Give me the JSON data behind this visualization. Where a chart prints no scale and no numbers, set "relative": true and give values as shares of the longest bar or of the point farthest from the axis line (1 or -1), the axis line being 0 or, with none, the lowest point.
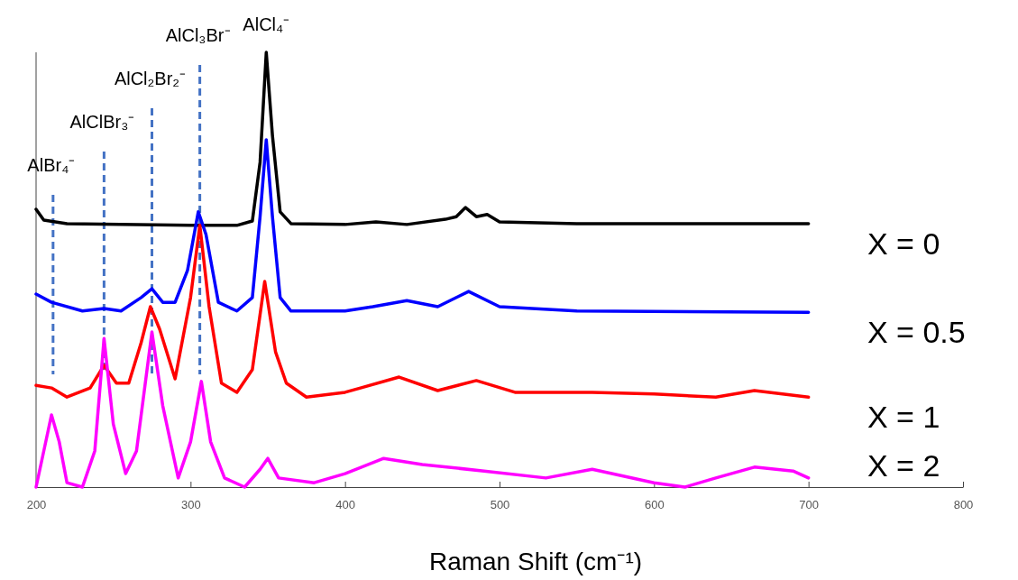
{
  "chart_data": {
    "type": "line",
    "relative": true,
    "xlabel": "Raman Shift (cm⁻¹)",
    "xlim": [
      200,
      800
    ],
    "xticks": [
      200,
      300,
      400,
      500,
      600,
      700,
      800
    ],
    "grid": false,
    "marker": "none",
    "line_style": "solid",
    "series": [
      {
        "name": "X = 0",
        "color": "#000000",
        "x": [
          200,
          205,
          220,
          300,
          330,
          340,
          345,
          349,
          353,
          358,
          365,
          400,
          420,
          440,
          465,
          472,
          478,
          485,
          492,
          500,
          550,
          700
        ],
        "values": [
          0.639,
          0.614,
          0.606,
          0.602,
          0.602,
          0.612,
          0.747,
          1.0,
          0.809,
          0.633,
          0.606,
          0.604,
          0.61,
          0.604,
          0.616,
          0.622,
          0.643,
          0.622,
          0.627,
          0.61,
          0.606,
          0.606
        ]
      },
      {
        "name": "X = 0.5",
        "color": "#0000ff",
        "x": [
          200,
          210,
          230,
          244,
          255,
          268,
          275,
          282,
          290,
          298,
          305,
          310,
          318,
          330,
          340,
          345,
          349,
          353,
          358,
          365,
          400,
          418,
          440,
          460,
          480,
          500,
          550,
          700
        ],
        "values": [
          0.444,
          0.425,
          0.405,
          0.411,
          0.405,
          0.436,
          0.456,
          0.425,
          0.425,
          0.498,
          0.633,
          0.581,
          0.425,
          0.405,
          0.436,
          0.622,
          0.799,
          0.622,
          0.436,
          0.405,
          0.405,
          0.415,
          0.429,
          0.415,
          0.45,
          0.415,
          0.405,
          0.402
        ]
      },
      {
        "name": "X = 1",
        "color": "#ff0000",
        "x": [
          200,
          210,
          220,
          235,
          244,
          252,
          260,
          268,
          274,
          280,
          290,
          300,
          306,
          312,
          320,
          330,
          340,
          348,
          355,
          362,
          375,
          400,
          410,
          435,
          460,
          485,
          510,
          560,
          600,
          640,
          665,
          700
        ],
        "values": [
          0.234,
          0.228,
          0.207,
          0.228,
          0.28,
          0.239,
          0.239,
          0.332,
          0.415,
          0.363,
          0.249,
          0.436,
          0.602,
          0.415,
          0.239,
          0.218,
          0.27,
          0.473,
          0.311,
          0.239,
          0.207,
          0.218,
          0.228,
          0.253,
          0.222,
          0.245,
          0.218,
          0.218,
          0.214,
          0.207,
          0.222,
          0.207
        ]
      },
      {
        "name": "X = 2",
        "color": "#ff00ff",
        "x": [
          200,
          205,
          210,
          215,
          220,
          230,
          238,
          244,
          250,
          258,
          265,
          275,
          282,
          292,
          300,
          307,
          313,
          322,
          335,
          345,
          350,
          357,
          380,
          400,
          425,
          450,
          490,
          530,
          560,
          600,
          620,
          640,
          665,
          690,
          700
        ],
        "values": [
          0.0,
          0.083,
          0.166,
          0.104,
          0.01,
          0.0,
          0.083,
          0.342,
          0.145,
          0.031,
          0.083,
          0.357,
          0.187,
          0.021,
          0.104,
          0.243,
          0.104,
          0.021,
          0.0,
          0.041,
          0.066,
          0.021,
          0.01,
          0.031,
          0.066,
          0.052,
          0.037,
          0.021,
          0.041,
          0.01,
          0.0,
          0.021,
          0.046,
          0.037,
          0.021
        ]
      }
    ],
    "ref_lines": [
      {
        "axis": "x",
        "value": 211,
        "label": "AlBr₄⁻",
        "color": "#4472c4",
        "line_style": "dashed"
      },
      {
        "axis": "x",
        "value": 244,
        "label": "AlClBr₃⁻",
        "color": "#4472c4",
        "line_style": "dashed"
      },
      {
        "axis": "x",
        "value": 275,
        "label": "AlCl₂Br₂⁻",
        "color": "#4472c4",
        "line_style": "dashed"
      },
      {
        "axis": "x",
        "value": 306,
        "label": "AlCl₃Br⁻",
        "color": "#4472c4",
        "line_style": "dashed"
      }
    ],
    "annotations": [
      {
        "text": "AlCl₄⁻",
        "x": 349,
        "y": 1.0
      }
    ]
  }
}
